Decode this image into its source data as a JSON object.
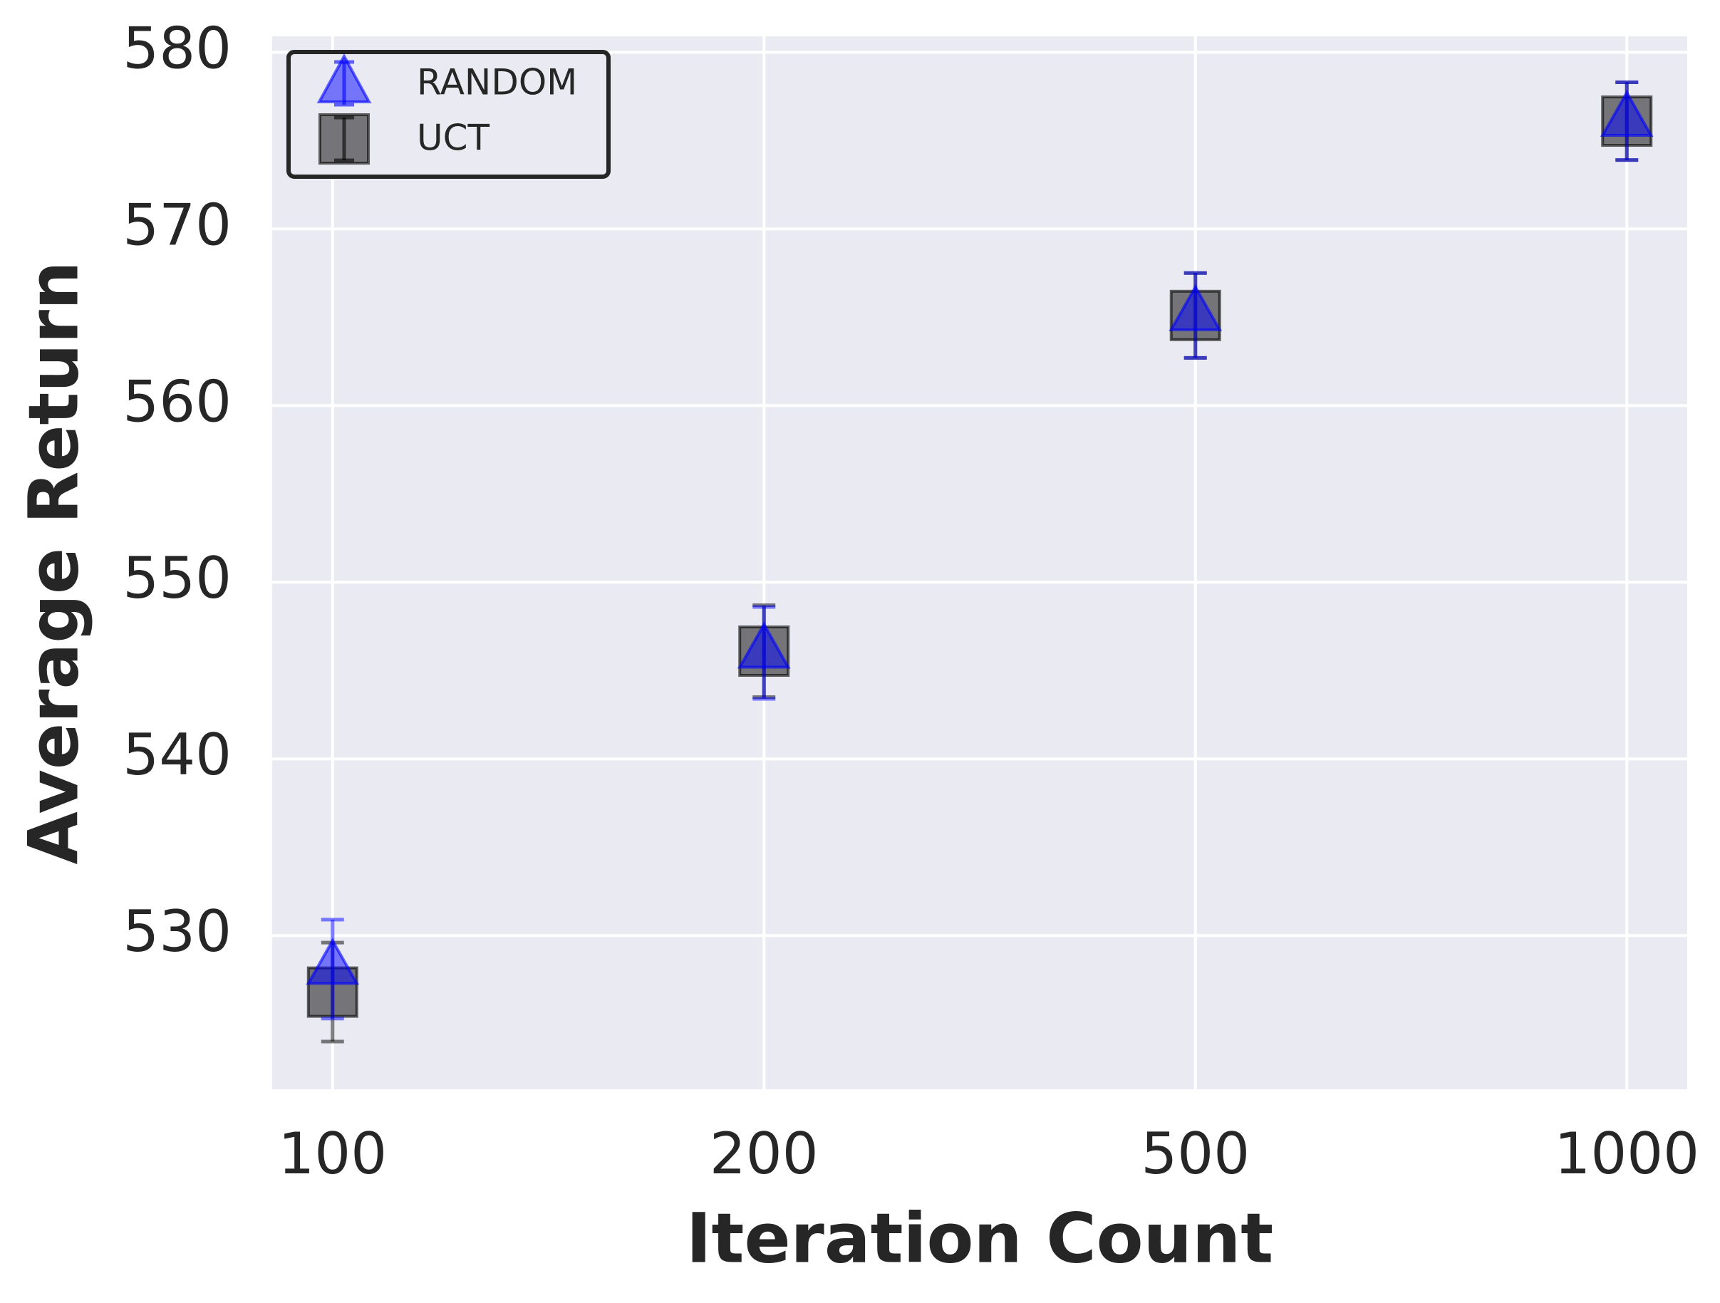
{
  "chart_data": {
    "type": "errorbar",
    "xlabel": "Iteration Count",
    "ylabel": "Average Return",
    "categories": [
      "100",
      "200",
      "500",
      "1000"
    ],
    "series": [
      {
        "name": "RANDOM",
        "color": "#0000ff",
        "marker": "triangle",
        "values": [
          528.1,
          546.0,
          565.1,
          576.1
        ],
        "errors": [
          2.8,
          2.6,
          2.4,
          2.2
        ]
      },
      {
        "name": "UCT",
        "color": "#000000",
        "marker": "square",
        "values": [
          526.8,
          546.1,
          565.1,
          576.1
        ],
        "errors": [
          2.8,
          2.6,
          2.4,
          2.2
        ]
      }
    ],
    "ylim": [
      521.3,
      580.9
    ],
    "yticks": [
      530,
      540,
      550,
      560,
      570,
      580
    ],
    "grid": true,
    "legend": "upper left"
  }
}
